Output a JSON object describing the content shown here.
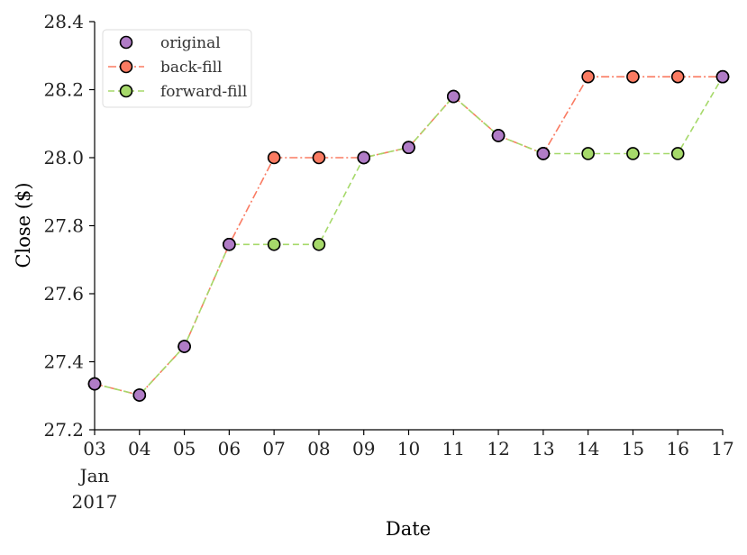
{
  "chart_data": {
    "type": "line",
    "xlabel": "Date",
    "ylabel": "Close ($)",
    "x": [
      "2017-01-03",
      "2017-01-04",
      "2017-01-05",
      "2017-01-06",
      "2017-01-07",
      "2017-01-08",
      "2017-01-09",
      "2017-01-10",
      "2017-01-11",
      "2017-01-12",
      "2017-01-13",
      "2017-01-14",
      "2017-01-15",
      "2017-01-16",
      "2017-01-17"
    ],
    "x_tick_labels": [
      "03",
      "04",
      "05",
      "06",
      "07",
      "08",
      "09",
      "10",
      "11",
      "12",
      "13",
      "14",
      "15",
      "16",
      "17"
    ],
    "x_tick_sublabels": [
      "Jan",
      "2017"
    ],
    "ylim": [
      27.2,
      28.4
    ],
    "y_ticks": [
      27.2,
      27.4,
      27.6,
      27.8,
      28.0,
      28.2,
      28.4
    ],
    "y_tick_labels": [
      "27.2",
      "27.4",
      "27.6",
      "27.8",
      "28.0",
      "28.2",
      "28.4"
    ],
    "legend_position": "top-left",
    "series": [
      {
        "name": "original",
        "style": "markers",
        "color": "#b07cc6",
        "values": [
          27.335,
          27.302,
          27.445,
          27.745,
          null,
          null,
          28.0,
          28.03,
          28.18,
          28.065,
          28.012,
          null,
          null,
          null,
          28.238
        ]
      },
      {
        "name": "back-fill",
        "style": "dashdot",
        "color": "#fa7b62",
        "values": [
          27.335,
          27.302,
          27.445,
          27.745,
          28.0,
          28.0,
          28.0,
          28.03,
          28.18,
          28.065,
          28.012,
          28.238,
          28.238,
          28.238,
          28.238
        ]
      },
      {
        "name": "forward-fill",
        "style": "dashed",
        "color": "#a6d96a",
        "values": [
          27.335,
          27.302,
          27.445,
          27.745,
          27.745,
          27.745,
          28.0,
          28.03,
          28.18,
          28.065,
          28.012,
          28.012,
          28.012,
          28.012,
          28.238
        ]
      }
    ]
  }
}
